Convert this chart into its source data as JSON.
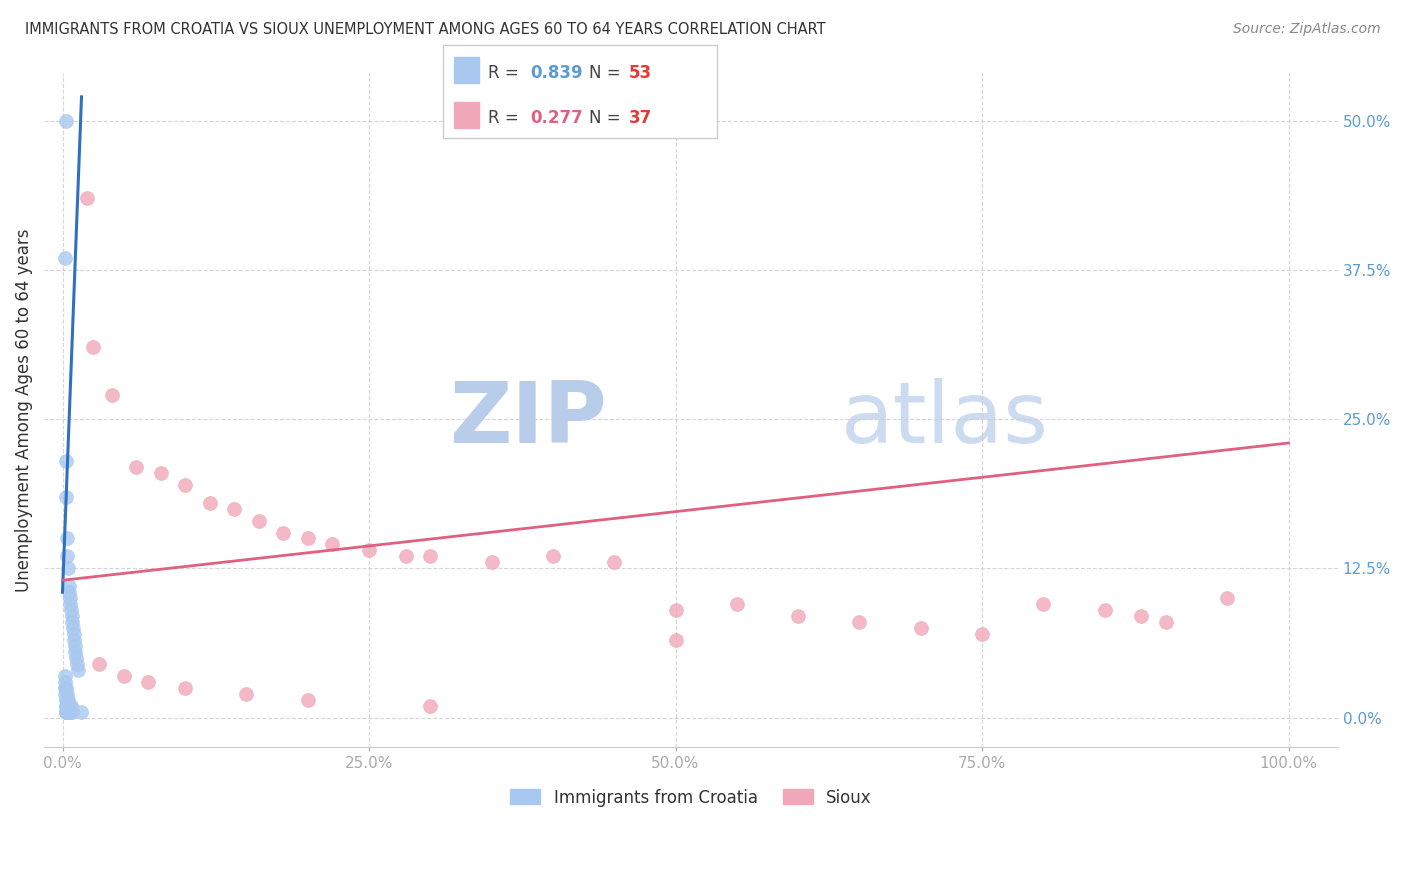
{
  "title": "IMMIGRANTS FROM CROATIA VS SIOUX UNEMPLOYMENT AMONG AGES 60 TO 64 YEARS CORRELATION CHART",
  "source": "Source: ZipAtlas.com",
  "ylabel": "Unemployment Among Ages 60 to 64 years",
  "blue_R": 0.839,
  "blue_N": 53,
  "pink_R": 0.277,
  "pink_N": 37,
  "blue_label": "Immigrants from Croatia",
  "pink_label": "Sioux",
  "blue_color": "#a8c8f0",
  "pink_color": "#f0a8b8",
  "blue_edge_color": "#a8c8f0",
  "pink_edge_color": "#f0a8b8",
  "blue_line_color": "#3070c0",
  "pink_line_color": "#e06080",
  "legend_blue_color": "#5b9bd5",
  "legend_pink_color": "#e06080",
  "legend_N_color": "#e53935",
  "watermark_zip_color": "#b0c8e8",
  "watermark_atlas_color": "#c8d8f0",
  "title_color": "#333333",
  "source_color": "#888888",
  "ylabel_color": "#333333",
  "tick_color": "#5b9bd5",
  "grid_color": "#cccccc",
  "xlim": [
    -1.5,
    104
  ],
  "ylim": [
    -2.5,
    54
  ],
  "xtick_vals": [
    0,
    25,
    50,
    75,
    100
  ],
  "xtick_labels": [
    "0.0%",
    "25.0%",
    "50.0%",
    "75.0%",
    "100.0%"
  ],
  "ytick_vals": [
    0,
    12.5,
    25.0,
    37.5,
    50.0
  ],
  "ytick_labels": [
    "0.0%",
    "12.5%",
    "25.0%",
    "37.5%",
    "50.0%"
  ],
  "blue_scatter_x": [
    0.25,
    0.25,
    0.3,
    0.3,
    0.35,
    0.35,
    0.4,
    0.4,
    0.45,
    0.45,
    0.5,
    0.5,
    0.55,
    0.55,
    0.6,
    0.6,
    0.65,
    0.65,
    0.7,
    0.7,
    0.75,
    0.8,
    0.85,
    0.9,
    0.95,
    1.0,
    1.05,
    1.1,
    1.2,
    1.3,
    0.2,
    0.2,
    0.2,
    0.22,
    0.22,
    0.25,
    0.28,
    0.28,
    0.3,
    0.3,
    0.32,
    0.35,
    0.38,
    0.4,
    0.42,
    0.45,
    0.48,
    0.5,
    0.55,
    0.6,
    0.65,
    0.75,
    1.5
  ],
  "blue_scatter_y": [
    50.0,
    1.0,
    21.5,
    2.5,
    15.0,
    2.0,
    13.5,
    1.5,
    12.5,
    1.5,
    11.0,
    1.0,
    10.5,
    1.0,
    10.0,
    1.0,
    9.5,
    1.0,
    9.0,
    1.0,
    8.5,
    8.0,
    7.5,
    7.0,
    6.5,
    6.0,
    5.5,
    5.0,
    4.5,
    4.0,
    3.5,
    3.0,
    38.5,
    2.5,
    2.0,
    18.5,
    1.5,
    1.0,
    0.5,
    0.5,
    0.5,
    0.5,
    0.5,
    0.5,
    0.5,
    0.5,
    0.5,
    0.5,
    0.5,
    0.5,
    0.5,
    0.5,
    0.5
  ],
  "pink_scatter_x": [
    2.0,
    2.5,
    4.0,
    6.0,
    8.0,
    10.0,
    12.0,
    14.0,
    16.0,
    18.0,
    20.0,
    22.0,
    25.0,
    28.0,
    30.0,
    35.0,
    40.0,
    45.0,
    50.0,
    55.0,
    60.0,
    65.0,
    70.0,
    75.0,
    80.0,
    85.0,
    88.0,
    90.0,
    95.0,
    3.0,
    5.0,
    7.0,
    10.0,
    15.0,
    20.0,
    30.0,
    50.0
  ],
  "pink_scatter_y": [
    43.5,
    31.0,
    27.0,
    21.0,
    20.5,
    19.5,
    18.0,
    17.5,
    16.5,
    15.5,
    15.0,
    14.5,
    14.0,
    13.5,
    13.5,
    13.0,
    13.5,
    13.0,
    9.0,
    9.5,
    8.5,
    8.0,
    7.5,
    7.0,
    9.5,
    9.0,
    8.5,
    8.0,
    10.0,
    4.5,
    3.5,
    3.0,
    2.5,
    2.0,
    1.5,
    1.0,
    6.5
  ],
  "blue_line_x": [
    0.0,
    1.55
  ],
  "blue_line_y": [
    10.5,
    52.0
  ],
  "pink_line_x": [
    0.0,
    100.0
  ],
  "pink_line_y": [
    11.5,
    23.0
  ]
}
